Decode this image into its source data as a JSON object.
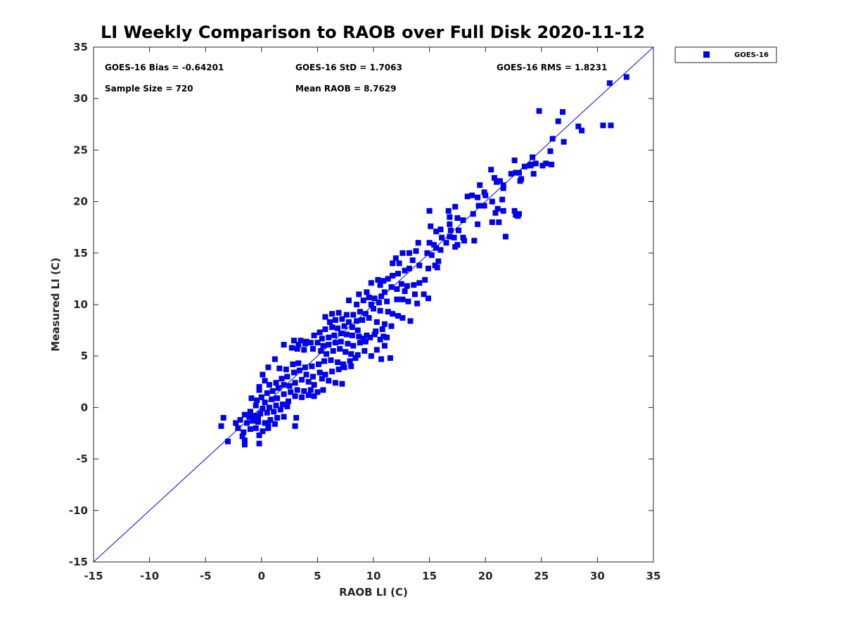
{
  "chart_data": {
    "type": "scatter",
    "title": "LI Weekly Comparison to RAOB over Full Disk 2020-11-12",
    "xlabel": "RAOB LI (C)",
    "ylabel": "Measured LI (C)",
    "xlim": [
      -15,
      35
    ],
    "ylim": [
      -15,
      35
    ],
    "xticks": [
      "-15",
      "-10",
      "-5",
      "0",
      "5",
      "10",
      "15",
      "20",
      "25",
      "30",
      "35"
    ],
    "yticks": [
      "-15",
      "-10",
      "-5",
      "0",
      "5",
      "10",
      "15",
      "20",
      "25",
      "30",
      "35"
    ],
    "grid": false,
    "legend_position": "outside top-right",
    "reference_line": {
      "from": [
        -15,
        -15
      ],
      "to": [
        35,
        35
      ]
    },
    "stats": {
      "bias": "GOES-16 Bias = -0.64201",
      "std": "GOES-16 StD = 1.7063",
      "rms": "GOES-16 RMS = 1.8231",
      "sample_size": "Sample Size = 720",
      "mean_raob": "Mean RAOB = 8.7629"
    },
    "series": [
      {
        "name": "GOES-16",
        "color": "#0000ee",
        "marker": "square",
        "points": [
          [
            32.6,
            32.1
          ],
          [
            31.1,
            31.5
          ],
          [
            30.5,
            27.4
          ],
          [
            31.2,
            27.4
          ],
          [
            28.3,
            27.3
          ],
          [
            28.6,
            26.9
          ],
          [
            24.8,
            28.8
          ],
          [
            26.9,
            28.7
          ],
          [
            26.5,
            27.8
          ],
          [
            26.0,
            26.1
          ],
          [
            27.0,
            25.8
          ],
          [
            25.8,
            24.9
          ],
          [
            22.6,
            24.0
          ],
          [
            24.2,
            24.3
          ],
          [
            24.0,
            23.5
          ],
          [
            23.5,
            23.4
          ],
          [
            24.5,
            23.7
          ],
          [
            25.4,
            23.7
          ],
          [
            25.9,
            23.6
          ],
          [
            25.1,
            23.5
          ],
          [
            24.1,
            23.6
          ],
          [
            22.3,
            22.7
          ],
          [
            23.0,
            22.8
          ],
          [
            22.7,
            22.8
          ],
          [
            24.3,
            22.7
          ],
          [
            23.2,
            22.2
          ],
          [
            23.1,
            22.0
          ],
          [
            20.5,
            23.1
          ],
          [
            20.8,
            22.3
          ],
          [
            21.0,
            21.9
          ],
          [
            21.3,
            22.0
          ],
          [
            21.6,
            21.6
          ],
          [
            21.6,
            21.3
          ],
          [
            19.5,
            21.6
          ],
          [
            19.9,
            20.9
          ],
          [
            20.0,
            20.6
          ],
          [
            19.3,
            20.4
          ],
          [
            18.8,
            20.6
          ],
          [
            18.4,
            20.5
          ],
          [
            20.6,
            20.0
          ],
          [
            21.5,
            20.2
          ],
          [
            19.9,
            19.6
          ],
          [
            19.4,
            19.6
          ],
          [
            17.3,
            19.5
          ],
          [
            16.7,
            19.1
          ],
          [
            15.0,
            19.1
          ],
          [
            16.8,
            18.5
          ],
          [
            17.5,
            18.4
          ],
          [
            18.0,
            18.2
          ],
          [
            20.9,
            18.9
          ],
          [
            21.6,
            19.1
          ],
          [
            21.1,
            19.3
          ],
          [
            22.6,
            19.1
          ],
          [
            22.7,
            18.7
          ],
          [
            23.0,
            18.8
          ],
          [
            22.9,
            18.6
          ],
          [
            21.2,
            18.0
          ],
          [
            20.6,
            18.0
          ],
          [
            19.3,
            17.8
          ],
          [
            18.9,
            18.8
          ],
          [
            16.8,
            17.8
          ],
          [
            17.6,
            17.2
          ],
          [
            16.9,
            17.2
          ],
          [
            16.0,
            17.3
          ],
          [
            15.1,
            17.6
          ],
          [
            15.6,
            17.1
          ],
          [
            16.1,
            16.5
          ],
          [
            16.5,
            16.0
          ],
          [
            16.8,
            16.6
          ],
          [
            17.2,
            16.5
          ],
          [
            18.0,
            16.5
          ],
          [
            18.1,
            16.2
          ],
          [
            19.0,
            16.2
          ],
          [
            21.8,
            16.6
          ],
          [
            15.0,
            16.0
          ],
          [
            14.0,
            16.0
          ],
          [
            15.4,
            15.8
          ],
          [
            15.6,
            15.5
          ],
          [
            16.0,
            15.3
          ],
          [
            17.3,
            15.6
          ],
          [
            17.5,
            15.8
          ],
          [
            15.2,
            14.8
          ],
          [
            15.8,
            14.2
          ],
          [
            13.2,
            15.0
          ],
          [
            12.6,
            15.0
          ],
          [
            13.8,
            15.2
          ],
          [
            14.8,
            15.0
          ],
          [
            12.0,
            14.5
          ],
          [
            12.3,
            14.0
          ],
          [
            11.7,
            14.0
          ],
          [
            13.5,
            14.3
          ],
          [
            14.1,
            13.8
          ],
          [
            14.9,
            13.5
          ],
          [
            15.5,
            13.8
          ],
          [
            15.7,
            13.6
          ],
          [
            13.2,
            13.5
          ],
          [
            12.8,
            13.3
          ],
          [
            12.2,
            13.0
          ],
          [
            11.7,
            12.8
          ],
          [
            11.3,
            12.5
          ],
          [
            10.9,
            12.3
          ],
          [
            10.4,
            12.4
          ],
          [
            9.8,
            12.1
          ],
          [
            10.6,
            11.9
          ],
          [
            11.6,
            11.7
          ],
          [
            12.5,
            12.0
          ],
          [
            13.0,
            11.8
          ],
          [
            13.6,
            11.9
          ],
          [
            14.1,
            12.1
          ],
          [
            14.6,
            12.4
          ],
          [
            12.1,
            11.5
          ],
          [
            12.8,
            11.3
          ],
          [
            13.7,
            11.0
          ],
          [
            14.5,
            11.0
          ],
          [
            11.0,
            11.2
          ],
          [
            10.7,
            10.8
          ],
          [
            10.1,
            10.6
          ],
          [
            9.6,
            10.7
          ],
          [
            9.1,
            10.4
          ],
          [
            8.5,
            10.0
          ],
          [
            7.8,
            10.4
          ],
          [
            8.7,
            11.0
          ],
          [
            9.4,
            11.2
          ],
          [
            9.8,
            10.0
          ],
          [
            10.5,
            10.2
          ],
          [
            11.2,
            10.3
          ],
          [
            12.1,
            10.5
          ],
          [
            12.6,
            10.5
          ],
          [
            13.1,
            10.3
          ],
          [
            13.9,
            10.1
          ],
          [
            14.9,
            10.6
          ],
          [
            10.0,
            9.6
          ],
          [
            10.6,
            9.4
          ],
          [
            11.3,
            9.3
          ],
          [
            11.7,
            9.1
          ],
          [
            12.2,
            8.9
          ],
          [
            12.6,
            8.7
          ],
          [
            13.3,
            8.4
          ],
          [
            9.3,
            9.1
          ],
          [
            8.8,
            9.3
          ],
          [
            8.2,
            9.0
          ],
          [
            7.6,
            9.0
          ],
          [
            6.9,
            9.2
          ],
          [
            6.3,
            9.1
          ],
          [
            5.7,
            8.8
          ],
          [
            6.1,
            8.3
          ],
          [
            6.6,
            8.5
          ],
          [
            7.2,
            8.6
          ],
          [
            7.8,
            8.3
          ],
          [
            8.5,
            8.4
          ],
          [
            9.0,
            8.5
          ],
          [
            9.6,
            8.7
          ],
          [
            10.3,
            8.3
          ],
          [
            11.0,
            8.1
          ],
          [
            11.6,
            7.9
          ],
          [
            10.8,
            7.6
          ],
          [
            10.2,
            7.4
          ],
          [
            10.9,
            6.9
          ],
          [
            11.2,
            6.8
          ],
          [
            10.6,
            6.6
          ],
          [
            9.7,
            6.8
          ],
          [
            9.1,
            6.7
          ],
          [
            8.6,
            7.5
          ],
          [
            8.1,
            7.8
          ],
          [
            7.4,
            7.9
          ],
          [
            6.8,
            7.7
          ],
          [
            6.3,
            7.8
          ],
          [
            5.7,
            7.6
          ],
          [
            5.2,
            7.3
          ],
          [
            4.7,
            7.0
          ],
          [
            5.4,
            6.7
          ],
          [
            6.0,
            6.8
          ],
          [
            6.5,
            7.0
          ],
          [
            7.1,
            7.2
          ],
          [
            7.6,
            7.1
          ],
          [
            8.1,
            7.0
          ],
          [
            8.7,
            6.9
          ],
          [
            9.4,
            7.0
          ],
          [
            10.1,
            7.1
          ],
          [
            9.3,
            6.4
          ],
          [
            8.8,
            6.3
          ],
          [
            8.2,
            6.0
          ],
          [
            7.7,
            6.2
          ],
          [
            7.1,
            6.4
          ],
          [
            6.6,
            6.3
          ],
          [
            6.0,
            6.1
          ],
          [
            5.5,
            6.0
          ],
          [
            5.0,
            6.3
          ],
          [
            4.4,
            6.3
          ],
          [
            3.9,
            6.2
          ],
          [
            3.3,
            6.1
          ],
          [
            2.9,
            6.5
          ],
          [
            3.5,
            6.5
          ],
          [
            4.0,
            6.4
          ],
          [
            2.0,
            6.1
          ],
          [
            2.7,
            5.8
          ],
          [
            3.2,
            5.7
          ],
          [
            3.8,
            5.6
          ],
          [
            4.6,
            5.7
          ],
          [
            5.3,
            5.5
          ],
          [
            5.8,
            5.2
          ],
          [
            6.4,
            5.5
          ],
          [
            7.0,
            5.7
          ],
          [
            7.5,
            5.4
          ],
          [
            8.0,
            5.2
          ],
          [
            8.6,
            5.1
          ],
          [
            9.2,
            5.5
          ],
          [
            9.8,
            5.0
          ],
          [
            10.3,
            5.6
          ],
          [
            11.0,
            6.0
          ],
          [
            10.7,
            4.7
          ],
          [
            11.5,
            4.8
          ],
          [
            8.4,
            4.8
          ],
          [
            7.9,
            4.5
          ],
          [
            7.3,
            4.2
          ],
          [
            6.8,
            4.4
          ],
          [
            6.2,
            4.6
          ],
          [
            5.6,
            4.5
          ],
          [
            5.1,
            4.2
          ],
          [
            4.5,
            4.0
          ],
          [
            3.9,
            3.9
          ],
          [
            3.3,
            4.3
          ],
          [
            2.8,
            4.2
          ],
          [
            2.2,
            3.7
          ],
          [
            1.6,
            3.8
          ],
          [
            1.2,
            4.7
          ],
          [
            0.6,
            3.9
          ],
          [
            0.1,
            3.2
          ],
          [
            0.3,
            2.6
          ],
          [
            -0.2,
            2.0
          ],
          [
            -0.2,
            1.7
          ],
          [
            0.7,
            2.2
          ],
          [
            1.3,
            2.4
          ],
          [
            1.8,
            2.8
          ],
          [
            2.3,
            3.0
          ],
          [
            2.9,
            3.4
          ],
          [
            3.4,
            3.6
          ],
          [
            4.0,
            3.2
          ],
          [
            4.6,
            3.0
          ],
          [
            5.2,
            3.4
          ],
          [
            5.7,
            3.2
          ],
          [
            6.3,
            3.5
          ],
          [
            6.9,
            3.7
          ],
          [
            7.4,
            3.9
          ],
          [
            8.0,
            4.0
          ],
          [
            5.4,
            2.8
          ],
          [
            6.0,
            2.6
          ],
          [
            6.6,
            2.4
          ],
          [
            7.2,
            2.3
          ],
          [
            4.7,
            2.2
          ],
          [
            4.2,
            2.5
          ],
          [
            3.6,
            2.7
          ],
          [
            3.0,
            2.4
          ],
          [
            2.5,
            2.1
          ],
          [
            2.0,
            2.2
          ],
          [
            1.5,
            1.9
          ],
          [
            1.0,
            1.6
          ],
          [
            0.5,
            1.4
          ],
          [
            0.0,
            1.0
          ],
          [
            -0.4,
            0.7
          ],
          [
            -0.9,
            0.9
          ],
          [
            0.3,
            0.5
          ],
          [
            0.9,
            0.8
          ],
          [
            1.4,
            0.9
          ],
          [
            2.0,
            1.3
          ],
          [
            2.6,
            1.5
          ],
          [
            3.2,
            1.7
          ],
          [
            3.8,
            1.6
          ],
          [
            4.4,
            1.7
          ],
          [
            5.0,
            1.5
          ],
          [
            5.5,
            1.7
          ],
          [
            3.0,
            1.1
          ],
          [
            3.6,
            1.0
          ],
          [
            4.2,
            1.2
          ],
          [
            4.7,
            1.1
          ],
          [
            2.4,
            0.6
          ],
          [
            1.9,
            0.3
          ],
          [
            1.3,
            0.2
          ],
          [
            0.7,
            0.0
          ],
          [
            0.1,
            -0.1
          ],
          [
            -0.5,
            0.2
          ],
          [
            -1.0,
            -0.4
          ],
          [
            -1.5,
            -0.7
          ],
          [
            -1.1,
            -0.9
          ],
          [
            -0.6,
            -0.8
          ],
          [
            -0.1,
            -0.6
          ],
          [
            0.5,
            -0.5
          ],
          [
            1.1,
            -0.4
          ],
          [
            1.7,
            -0.2
          ],
          [
            2.3,
            0.1
          ],
          [
            2.0,
            -0.9
          ],
          [
            1.4,
            -1.0
          ],
          [
            0.8,
            -1.2
          ],
          [
            0.3,
            -1.5
          ],
          [
            -0.3,
            -1.4
          ],
          [
            -0.8,
            -1.3
          ],
          [
            -1.3,
            -1.5
          ],
          [
            -1.9,
            -1.2
          ],
          [
            -2.3,
            -1.5
          ],
          [
            -3.4,
            -1.0
          ],
          [
            -3.6,
            -1.8
          ],
          [
            -2.1,
            -2.0
          ],
          [
            -1.6,
            -2.4
          ],
          [
            -1.0,
            -2.1
          ],
          [
            -0.5,
            -2.0
          ],
          [
            0.1,
            -2.3
          ],
          [
            0.6,
            -2.0
          ],
          [
            1.2,
            -1.6
          ],
          [
            3.0,
            -1.8
          ],
          [
            3.1,
            -1.0
          ],
          [
            -0.2,
            -2.7
          ],
          [
            -1.7,
            -2.8
          ],
          [
            -1.5,
            -3.2
          ],
          [
            -1.5,
            -3.6
          ],
          [
            -3.0,
            -3.3
          ],
          [
            -0.2,
            -3.5
          ],
          [
            0.6,
            -1.6
          ],
          [
            -0.3,
            -1.0
          ]
        ]
      }
    ]
  }
}
